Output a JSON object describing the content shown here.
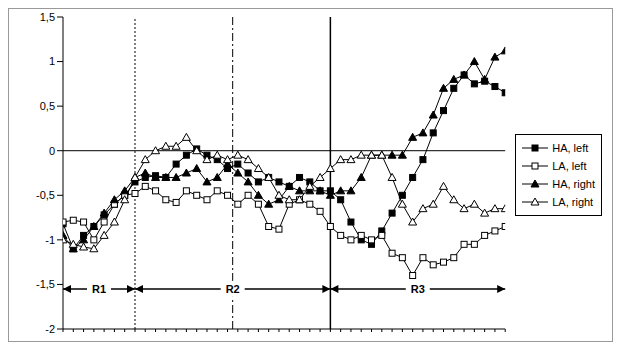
{
  "chart_data": {
    "type": "line",
    "x": [
      0,
      1,
      2,
      3,
      4,
      5,
      6,
      7,
      8,
      9,
      10,
      11,
      12,
      13,
      14,
      15,
      16,
      17,
      18,
      19,
      20,
      21,
      22,
      23,
      24,
      25,
      26,
      27,
      28,
      29,
      30,
      31,
      32,
      33,
      34,
      35,
      36,
      37,
      38,
      39,
      40,
      41,
      42,
      43
    ],
    "xlim": [
      0,
      43
    ],
    "xticks": [
      0,
      1,
      2,
      3,
      4,
      5,
      6,
      7,
      8,
      9,
      10,
      11,
      12,
      13,
      14,
      15,
      16,
      17,
      18,
      19,
      20,
      21,
      22,
      23,
      24,
      25,
      26,
      27,
      28,
      29,
      30,
      31,
      32,
      33,
      34,
      35,
      36,
      37,
      38,
      39,
      40,
      41,
      42,
      43
    ],
    "ylim": [
      -2,
      1.5
    ],
    "yticks": [
      {
        "value": -2,
        "label": "-2"
      },
      {
        "value": -1.5,
        "label": "-1,5"
      },
      {
        "value": -1,
        "label": "-1"
      },
      {
        "value": -0.5,
        "label": "-0,5"
      },
      {
        "value": 0,
        "label": "0"
      },
      {
        "value": 0.5,
        "label": "0,5"
      },
      {
        "value": 1,
        "label": "1"
      },
      {
        "value": 1.5,
        "label": "1,5"
      }
    ],
    "tick_labels": "y",
    "grid": false,
    "legend": "right",
    "series": [
      {
        "name": "HA, left",
        "color": "#000000",
        "marker": "square",
        "values": [
          -0.82,
          -1.1,
          -0.95,
          -0.85,
          -0.72,
          -0.6,
          -0.5,
          -0.35,
          -0.3,
          -0.28,
          -0.3,
          -0.15,
          -0.05,
          0.02,
          -0.05,
          -0.1,
          -0.2,
          -0.15,
          -0.25,
          -0.35,
          -0.3,
          -0.35,
          -0.4,
          -0.3,
          -0.35,
          -0.45,
          -0.45,
          -0.55,
          -0.8,
          -1.0,
          -1.05,
          -0.9,
          -0.7,
          -0.5,
          -0.3,
          -0.1,
          0.2,
          0.45,
          0.7,
          0.85,
          0.75,
          0.78,
          0.72,
          0.65
        ]
      },
      {
        "name": "LA, left",
        "color": "#000000",
        "marker": "square_open",
        "values": [
          -0.8,
          -0.78,
          -0.8,
          -1.0,
          -0.8,
          -0.6,
          -0.5,
          -0.48,
          -0.4,
          -0.45,
          -0.55,
          -0.58,
          -0.45,
          -0.5,
          -0.55,
          -0.45,
          -0.5,
          -0.6,
          -0.5,
          -0.6,
          -0.85,
          -0.88,
          -0.6,
          -0.55,
          -0.6,
          -0.68,
          -0.85,
          -0.95,
          -1.0,
          -0.95,
          -1.0,
          -0.95,
          -1.15,
          -1.2,
          -1.4,
          -1.2,
          -1.28,
          -1.25,
          -1.2,
          -1.05,
          -1.05,
          -0.95,
          -0.9,
          -0.85
        ]
      },
      {
        "name": "HA, right",
        "color": "#000000",
        "marker": "triangle",
        "values": [
          -0.95,
          -1.1,
          -1.0,
          -0.85,
          -0.7,
          -0.55,
          -0.45,
          -0.3,
          -0.25,
          -0.3,
          -0.3,
          -0.3,
          -0.25,
          -0.2,
          -0.35,
          -0.3,
          -0.15,
          -0.25,
          -0.35,
          -0.5,
          -0.6,
          -0.55,
          -0.4,
          -0.45,
          -0.45,
          -0.45,
          -0.5,
          -0.45,
          -0.45,
          -0.3,
          -0.05,
          -0.05,
          -0.05,
          -0.05,
          0.15,
          0.2,
          0.4,
          0.7,
          0.8,
          0.85,
          1.0,
          0.8,
          1.05,
          1.12
        ]
      },
      {
        "name": "LA, right",
        "color": "#000000",
        "marker": "triangle_open",
        "values": [
          -1.0,
          -1.05,
          -1.08,
          -1.1,
          -0.95,
          -0.8,
          -0.55,
          -0.3,
          -0.1,
          0.0,
          0.05,
          0.05,
          0.15,
          0.0,
          -0.1,
          -0.05,
          -0.1,
          -0.05,
          -0.1,
          -0.2,
          -0.3,
          -0.5,
          -0.55,
          -0.55,
          -0.4,
          -0.3,
          -0.2,
          -0.1,
          -0.1,
          -0.05,
          -0.05,
          -0.05,
          -0.3,
          -0.6,
          -0.8,
          -0.65,
          -0.6,
          -0.4,
          -0.55,
          -0.65,
          -0.6,
          -0.7,
          -0.65,
          -0.65
        ]
      }
    ],
    "hlines": [
      {
        "y": 0,
        "line_style": "solid"
      }
    ],
    "vlines": [
      {
        "x": 7,
        "line_style": "dotted"
      },
      {
        "x": 16.5,
        "line_style": "dashdot"
      },
      {
        "x": 26,
        "line_style": "solid"
      }
    ],
    "ranges": [
      {
        "label": "R1",
        "from": 0,
        "to": 7,
        "y": -1.55
      },
      {
        "label": "R2",
        "from": 7,
        "to": 26,
        "y": -1.55
      },
      {
        "label": "R3",
        "from": 26,
        "to": 43,
        "y": -1.55
      }
    ]
  }
}
